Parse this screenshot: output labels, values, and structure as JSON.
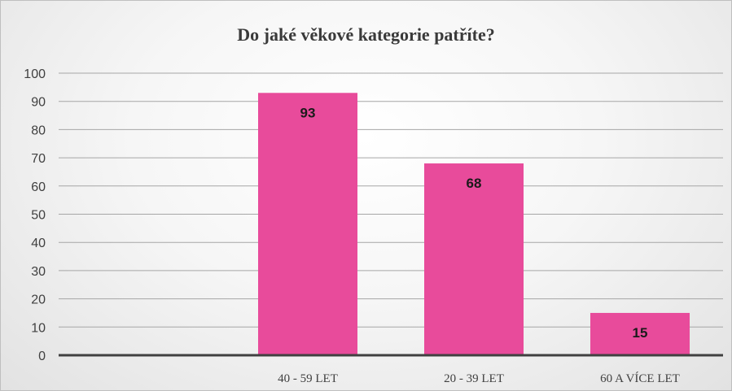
{
  "chart_data": {
    "type": "bar",
    "title": "Do jaké věkové kategorie patříte?",
    "categories": [
      "",
      "40 - 59 LET",
      "20 - 39 LET",
      "60 A VÍCE LET"
    ],
    "values": [
      null,
      93,
      68,
      15
    ],
    "ylim": [
      0,
      100
    ],
    "yticks": [
      0,
      10,
      20,
      30,
      40,
      50,
      60,
      70,
      80,
      90,
      100
    ],
    "grid": true,
    "bar_color": "#e84b9b",
    "xlabel": "",
    "ylabel": ""
  }
}
